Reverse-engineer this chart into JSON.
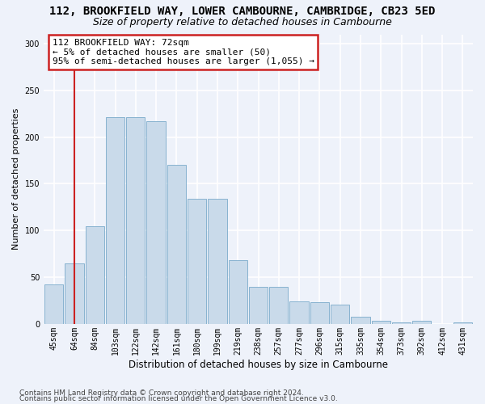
{
  "title_line1": "112, BROOKFIELD WAY, LOWER CAMBOURNE, CAMBRIDGE, CB23 5ED",
  "title_line2": "Size of property relative to detached houses in Cambourne",
  "xlabel": "Distribution of detached houses by size in Cambourne",
  "ylabel": "Number of detached properties",
  "categories": [
    "45sqm",
    "64sqm",
    "84sqm",
    "103sqm",
    "122sqm",
    "142sqm",
    "161sqm",
    "180sqm",
    "199sqm",
    "219sqm",
    "238sqm",
    "257sqm",
    "277sqm",
    "296sqm",
    "315sqm",
    "335sqm",
    "354sqm",
    "373sqm",
    "392sqm",
    "412sqm",
    "431sqm"
  ],
  "values": [
    42,
    65,
    105,
    221,
    221,
    217,
    170,
    134,
    134,
    68,
    40,
    40,
    24,
    23,
    21,
    8,
    3,
    2,
    3,
    0,
    2
  ],
  "bar_color": "#c9daea",
  "bar_edge_color": "#7aaaca",
  "vline_x_index": 1,
  "annotation_text_line1": "112 BROOKFIELD WAY: 72sqm",
  "annotation_text_line2": "← 5% of detached houses are smaller (50)",
  "annotation_text_line3": "95% of semi-detached houses are larger (1,055) →",
  "annotation_box_facecolor": "white",
  "annotation_box_edgecolor": "#cc2222",
  "vline_color": "#cc2222",
  "ylim": [
    0,
    310
  ],
  "yticks": [
    0,
    50,
    100,
    150,
    200,
    250,
    300
  ],
  "footer_line1": "Contains HM Land Registry data © Crown copyright and database right 2024.",
  "footer_line2": "Contains public sector information licensed under the Open Government Licence v3.0.",
  "bg_color": "#eef2fa",
  "grid_color": "white",
  "title1_fontsize": 10,
  "title2_fontsize": 9,
  "ylabel_fontsize": 8,
  "xlabel_fontsize": 8.5,
  "tick_fontsize": 7,
  "annotation_fontsize": 8,
  "footer_fontsize": 6.5
}
